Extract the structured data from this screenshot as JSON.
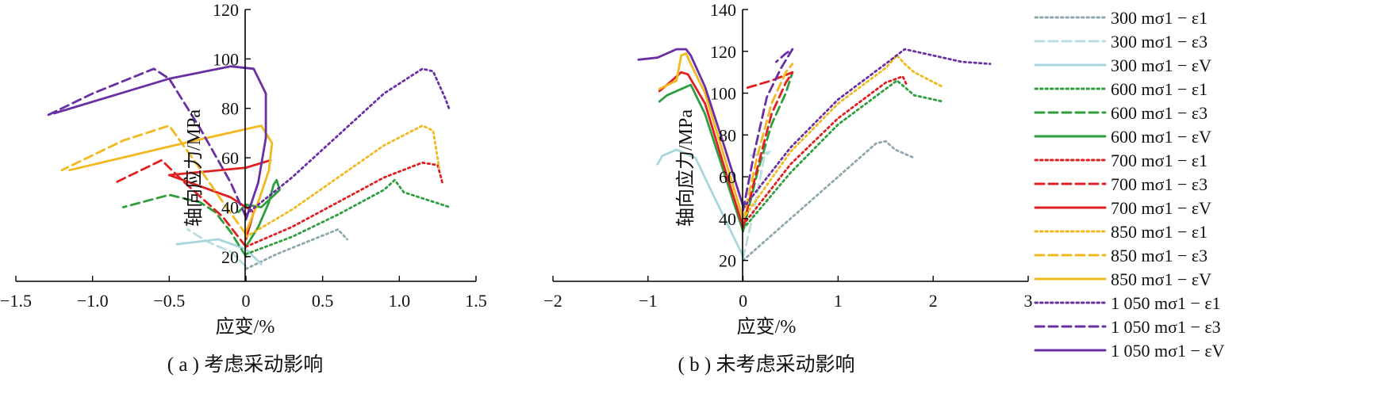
{
  "legend": [
    {
      "label": "300 mσ1 − ε1",
      "color": "#8fa8ad",
      "dash": "dot"
    },
    {
      "label": "300 mσ1 − ε3",
      "color": "#bcdde0",
      "dash": "dash"
    },
    {
      "label": "300 mσ1 − εV",
      "color": "#a8d6dc",
      "dash": "solid"
    },
    {
      "label": "600 mσ1 − ε1",
      "color": "#2e9e3e",
      "dash": "dot"
    },
    {
      "label": "600 mσ1 − ε3",
      "color": "#2e9e3e",
      "dash": "dash"
    },
    {
      "label": "600 mσ1 − εV",
      "color": "#2e9e3e",
      "dash": "solid"
    },
    {
      "label": "700 mσ1 − ε1",
      "color": "#e02020",
      "dash": "dot"
    },
    {
      "label": "700 mσ1 − ε3",
      "color": "#e02020",
      "dash": "dash"
    },
    {
      "label": "700 mσ1 − εV",
      "color": "#e02020",
      "dash": "solid"
    },
    {
      "label": "850 mσ1 − ε1",
      "color": "#f2b81e",
      "dash": "dot"
    },
    {
      "label": "850 mσ1 − ε3",
      "color": "#f2b81e",
      "dash": "dash"
    },
    {
      "label": "850 mσ1 − εV",
      "color": "#f2b81e",
      "dash": "solid"
    },
    {
      "label": "1 050 mσ1 − ε1",
      "color": "#6a2fa2",
      "dash": "dot"
    },
    {
      "label": "1 050 mσ1 − ε3",
      "color": "#6a2fa2",
      "dash": "dash"
    },
    {
      "label": "1 050 mσ1 − εV",
      "color": "#6a2fa2",
      "dash": "solid"
    }
  ],
  "chart_data": [
    {
      "type": "line",
      "caption": "( a ) 考虑采动影响",
      "xlabel": "应变/%",
      "ylabel": "轴向应力/MPa",
      "xlim": [
        -1.5,
        1.5
      ],
      "ylim": [
        10,
        120
      ],
      "xticks": [
        -1.5,
        -1.0,
        -0.5,
        0,
        0.5,
        1.0,
        1.5
      ],
      "xtick_labels": [
        "−1.5",
        "−1.0",
        "−0.5",
        "0",
        "0.5",
        "1.0",
        "1.5"
      ],
      "yticks": [
        20,
        40,
        60,
        80,
        100,
        120
      ],
      "ytick_labels": [
        "20",
        "40",
        "60",
        "80",
        "100",
        "120"
      ],
      "series": [
        {
          "legend": 0,
          "points": [
            [
              0,
              15
            ],
            [
              0.2,
              21
            ],
            [
              0.4,
              26
            ],
            [
              0.6,
              31
            ],
            [
              0.66,
              27
            ]
          ]
        },
        {
          "legend": 1,
          "points": [
            [
              0,
              16
            ],
            [
              -0.1,
              22
            ],
            [
              -0.25,
              26
            ],
            [
              -0.38,
              31
            ]
          ]
        },
        {
          "legend": 2,
          "points": [
            [
              0.1,
              17
            ],
            [
              0,
              23
            ],
            [
              -0.18,
              27
            ],
            [
              -0.45,
              25
            ]
          ]
        },
        {
          "legend": 3,
          "points": [
            [
              0,
              21
            ],
            [
              0.3,
              28
            ],
            [
              0.6,
              37
            ],
            [
              0.9,
              47
            ],
            [
              0.97,
              51
            ],
            [
              1.03,
              46
            ],
            [
              1.33,
              40
            ]
          ]
        },
        {
          "legend": 4,
          "points": [
            [
              0,
              20
            ],
            [
              -0.1,
              30
            ],
            [
              -0.2,
              38
            ],
            [
              -0.3,
              42
            ],
            [
              -0.5,
              45
            ],
            [
              -0.8,
              40
            ]
          ]
        },
        {
          "legend": 5,
          "points": [
            [
              0,
              24
            ],
            [
              0.08,
              32
            ],
            [
              0.15,
              42
            ],
            [
              0.18,
              49
            ],
            [
              0.2,
              51
            ],
            [
              0.22,
              47
            ],
            [
              0.1,
              40
            ],
            [
              0,
              41
            ],
            [
              -0.05,
              38
            ]
          ]
        },
        {
          "legend": 6,
          "points": [
            [
              0,
              24
            ],
            [
              0.3,
              32
            ],
            [
              0.6,
              42
            ],
            [
              0.9,
              52
            ],
            [
              1.15,
              58
            ],
            [
              1.25,
              57
            ],
            [
              1.28,
              50
            ]
          ]
        },
        {
          "legend": 7,
          "points": [
            [
              0,
              24
            ],
            [
              -0.15,
              36
            ],
            [
              -0.4,
              50
            ],
            [
              -0.55,
              59
            ],
            [
              -0.85,
              50
            ]
          ]
        },
        {
          "legend": 8,
          "points": [
            [
              0,
              27
            ],
            [
              0.05,
              38
            ],
            [
              -0.1,
              44
            ],
            [
              -0.5,
              53
            ],
            [
              0,
              56
            ],
            [
              0.16,
              59
            ]
          ]
        },
        {
          "legend": 9,
          "points": [
            [
              0,
              28
            ],
            [
              0.3,
              39
            ],
            [
              0.6,
              52
            ],
            [
              0.9,
              65
            ],
            [
              1.15,
              73
            ],
            [
              1.22,
              71
            ],
            [
              1.26,
              56
            ]
          ]
        },
        {
          "legend": 10,
          "points": [
            [
              0,
              29
            ],
            [
              -0.15,
              42
            ],
            [
              -0.35,
              60
            ],
            [
              -0.5,
              73
            ],
            [
              -0.8,
              67
            ],
            [
              -1.2,
              55
            ]
          ]
        },
        {
          "legend": 11,
          "points": [
            [
              0,
              30
            ],
            [
              0.08,
              42
            ],
            [
              0.15,
              55
            ],
            [
              0.17,
              66
            ],
            [
              0.1,
              73
            ],
            [
              -0.4,
              66
            ],
            [
              -1.15,
              55
            ]
          ]
        },
        {
          "legend": 12,
          "points": [
            [
              0,
              37
            ],
            [
              0.3,
              52
            ],
            [
              0.6,
              69
            ],
            [
              0.9,
              86
            ],
            [
              1.15,
              96
            ],
            [
              1.22,
              95
            ],
            [
              1.3,
              84
            ],
            [
              1.33,
              79
            ]
          ]
        },
        {
          "legend": 13,
          "points": [
            [
              0,
              36
            ],
            [
              -0.1,
              50
            ],
            [
              -0.3,
              72
            ],
            [
              -0.5,
              92
            ],
            [
              -0.6,
              96
            ],
            [
              -1.0,
              86
            ],
            [
              -1.3,
              77
            ]
          ]
        },
        {
          "legend": 14,
          "points": [
            [
              0,
              35
            ],
            [
              0.08,
              50
            ],
            [
              0.13,
              68
            ],
            [
              0.13,
              86
            ],
            [
              0.05,
              96
            ],
            [
              -0.1,
              97
            ],
            [
              -0.5,
              92
            ],
            [
              -1.25,
              78
            ]
          ]
        }
      ]
    },
    {
      "type": "line",
      "caption": "( b ) 未考虑采动影响",
      "xlabel": "应变/%",
      "ylabel": "轴向应力/MPa",
      "xlim": [
        -2,
        3
      ],
      "ylim": [
        10,
        140
      ],
      "xticks": [
        -2,
        -1,
        0,
        1,
        2,
        3
      ],
      "xtick_labels": [
        "−2",
        "−1",
        "0",
        "1",
        "2",
        "3"
      ],
      "yticks": [
        20,
        40,
        60,
        80,
        100,
        120,
        140
      ],
      "ytick_labels": [
        "20",
        "40",
        "60",
        "80",
        "100",
        "120",
        "140"
      ],
      "series": [
        {
          "legend": 0,
          "points": [
            [
              0,
              20
            ],
            [
              0.5,
              40
            ],
            [
              1.0,
              60
            ],
            [
              1.4,
              76
            ],
            [
              1.5,
              77
            ],
            [
              1.6,
              73
            ],
            [
              1.8,
              69
            ]
          ]
        },
        {
          "legend": 1,
          "points": [
            [
              0,
              21
            ],
            [
              0.12,
              45
            ],
            [
              0.22,
              69
            ],
            [
              0.28,
              72
            ],
            [
              0.22,
              71
            ],
            [
              0.05,
              70
            ]
          ]
        },
        {
          "legend": 2,
          "points": [
            [
              0,
              22
            ],
            [
              -0.3,
              50
            ],
            [
              -0.5,
              69
            ],
            [
              -0.7,
              73
            ],
            [
              -0.85,
              70
            ],
            [
              -0.9,
              66
            ]
          ]
        },
        {
          "legend": 3,
          "points": [
            [
              0,
              35
            ],
            [
              0.5,
              62
            ],
            [
              1.0,
              85
            ],
            [
              1.5,
              102
            ],
            [
              1.62,
              106
            ],
            [
              1.8,
              99
            ],
            [
              2.1,
              96
            ]
          ]
        },
        {
          "legend": 4,
          "points": [
            [
              0,
              34
            ],
            [
              0.15,
              62
            ],
            [
              0.3,
              85
            ],
            [
              0.45,
              100
            ],
            [
              0.52,
              110
            ]
          ]
        },
        {
          "legend": 5,
          "points": [
            [
              0,
              34
            ],
            [
              -0.2,
              62
            ],
            [
              -0.4,
              90
            ],
            [
              -0.55,
              104
            ],
            [
              -0.65,
              102
            ],
            [
              -0.8,
              99
            ],
            [
              -0.88,
              96
            ]
          ]
        },
        {
          "legend": 6,
          "points": [
            [
              0,
              37
            ],
            [
              0.5,
              66
            ],
            [
              1.0,
              88
            ],
            [
              1.5,
              105
            ],
            [
              1.68,
              108
            ],
            [
              1.72,
              104
            ]
          ]
        },
        {
          "legend": 7,
          "points": [
            [
              0,
              36
            ],
            [
              0.15,
              64
            ],
            [
              0.3,
              90
            ],
            [
              0.45,
              105
            ],
            [
              0.52,
              110
            ],
            [
              0.3,
              106
            ],
            [
              0,
              102
            ]
          ]
        },
        {
          "legend": 8,
          "points": [
            [
              0,
              36
            ],
            [
              -0.2,
              65
            ],
            [
              -0.4,
              95
            ],
            [
              -0.58,
              109
            ],
            [
              -0.65,
              110
            ],
            [
              -0.8,
              104
            ],
            [
              -0.88,
              101
            ]
          ]
        },
        {
          "legend": 9,
          "points": [
            [
              0,
              40
            ],
            [
              0.5,
              72
            ],
            [
              1.0,
              95
            ],
            [
              1.5,
              112
            ],
            [
              1.62,
              118
            ],
            [
              1.7,
              114
            ],
            [
              1.8,
              110
            ],
            [
              2.1,
              103
            ]
          ]
        },
        {
          "legend": 10,
          "points": [
            [
              0,
              39
            ],
            [
              0.15,
              70
            ],
            [
              0.3,
              95
            ],
            [
              0.45,
              110
            ],
            [
              0.52,
              114
            ]
          ]
        },
        {
          "legend": 11,
          "points": [
            [
              0,
              40
            ],
            [
              -0.2,
              70
            ],
            [
              -0.4,
              100
            ],
            [
              -0.55,
              114
            ],
            [
              -0.6,
              119
            ],
            [
              -0.65,
              118
            ],
            [
              -0.7,
              106
            ],
            [
              -0.88,
              102
            ]
          ]
        },
        {
          "legend": 12,
          "points": [
            [
              0,
              45
            ],
            [
              0.5,
              74
            ],
            [
              1.0,
              97
            ],
            [
              1.5,
              114
            ],
            [
              1.7,
              121
            ],
            [
              2.0,
              118
            ],
            [
              2.3,
              115
            ],
            [
              2.6,
              114
            ]
          ]
        },
        {
          "legend": 13,
          "points": [
            [
              0,
              44
            ],
            [
              0.12,
              72
            ],
            [
              0.25,
              98
            ],
            [
              0.4,
              112
            ],
            [
              0.52,
              121
            ],
            [
              0.45,
              119
            ],
            [
              0.35,
              115
            ]
          ]
        },
        {
          "legend": 14,
          "points": [
            [
              0,
              46
            ],
            [
              -0.2,
              75
            ],
            [
              -0.4,
              103
            ],
            [
              -0.55,
              118
            ],
            [
              -0.6,
              121
            ],
            [
              -0.7,
              121
            ],
            [
              -0.9,
              117
            ],
            [
              -1.1,
              116
            ]
          ]
        }
      ]
    }
  ]
}
